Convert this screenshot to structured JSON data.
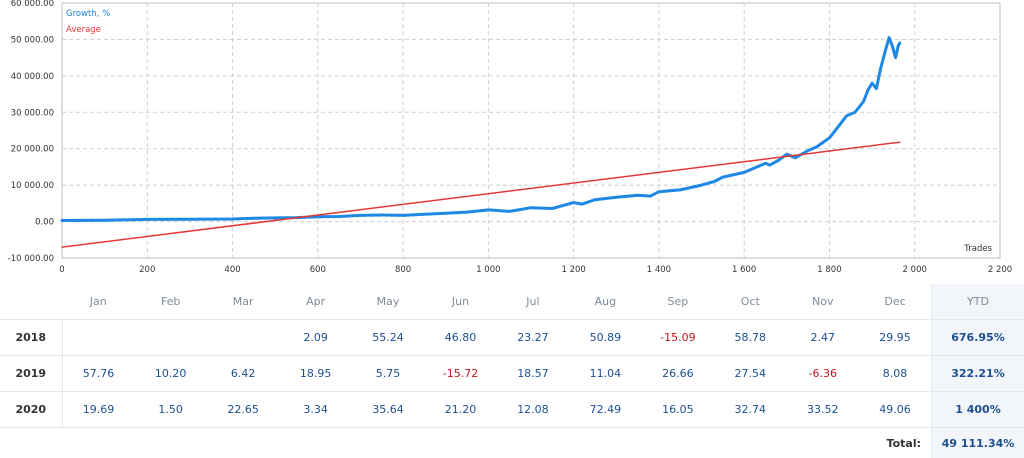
{
  "chart_data": {
    "type": "line",
    "xlabel": "Trades",
    "ylabel": "",
    "xlim": [
      0,
      2200
    ],
    "ylim": [
      -10000,
      60000
    ],
    "x_ticks": [
      "0",
      "200",
      "400",
      "600",
      "800",
      "1 000",
      "1 200",
      "1 400",
      "1 600",
      "1 800",
      "2 000",
      "2 200"
    ],
    "y_ticks": [
      "-10 000.00",
      "0.00",
      "10 000.00",
      "20 000.00",
      "30 000.00",
      "40 000.00",
      "50 000.00",
      "60 000.00"
    ],
    "grid": true,
    "legend_position": "top-left",
    "series": [
      {
        "name": "Growth, %",
        "color": "#1e88e5",
        "x": [
          0,
          100,
          200,
          300,
          400,
          450,
          500,
          550,
          600,
          650,
          700,
          750,
          800,
          850,
          900,
          950,
          1000,
          1050,
          1100,
          1150,
          1200,
          1220,
          1250,
          1300,
          1350,
          1380,
          1400,
          1450,
          1500,
          1530,
          1550,
          1600,
          1630,
          1650,
          1660,
          1680,
          1700,
          1720,
          1750,
          1770,
          1800,
          1820,
          1840,
          1860,
          1880,
          1890,
          1900,
          1910,
          1920,
          1930,
          1940,
          1948,
          1955,
          1962,
          1965
        ],
        "y": [
          300,
          350,
          600,
          650,
          700,
          900,
          1000,
          1100,
          1300,
          1400,
          1700,
          1800,
          1700,
          2000,
          2300,
          2600,
          3200,
          2800,
          3800,
          3600,
          5200,
          4800,
          6000,
          6700,
          7200,
          7000,
          8200,
          8700,
          10000,
          11000,
          12200,
          13500,
          15000,
          16000,
          15500,
          16800,
          18500,
          17500,
          19500,
          20500,
          23000,
          26000,
          29000,
          30000,
          33000,
          36000,
          38000,
          36500,
          42000,
          46500,
          50500,
          48000,
          45000,
          48500,
          49000
        ]
      },
      {
        "name": "Average",
        "color": "#e53935",
        "x": [
          0,
          1965
        ],
        "y": [
          -7000,
          21800
        ]
      }
    ]
  },
  "table": {
    "months": [
      "Jan",
      "Feb",
      "Mar",
      "Apr",
      "May",
      "Jun",
      "Jul",
      "Aug",
      "Sep",
      "Oct",
      "Nov",
      "Dec"
    ],
    "ytd_header": "YTD",
    "rows": [
      {
        "year": "2018",
        "values": [
          "",
          "",
          "",
          "2.09",
          "55.24",
          "46.80",
          "23.27",
          "50.89",
          "-15.09",
          "58.78",
          "2.47",
          "29.95"
        ],
        "ytd": "676.95%"
      },
      {
        "year": "2019",
        "values": [
          "57.76",
          "10.20",
          "6.42",
          "18.95",
          "5.75",
          "-15.72",
          "18.57",
          "11.04",
          "26.66",
          "27.54",
          "-6.36",
          "8.08"
        ],
        "ytd": "322.21%"
      },
      {
        "year": "2020",
        "values": [
          "19.69",
          "1.50",
          "22.65",
          "3.34",
          "35.64",
          "21.20",
          "12.08",
          "72.49",
          "16.05",
          "32.74",
          "33.52",
          "49.06"
        ],
        "ytd": "1 400%"
      }
    ],
    "total_label": "Total:",
    "total_value": "49 111.34%"
  },
  "colors": {
    "positive": "#1d4f91",
    "negative": "#c0181f",
    "grid": "#cfcfcf"
  }
}
